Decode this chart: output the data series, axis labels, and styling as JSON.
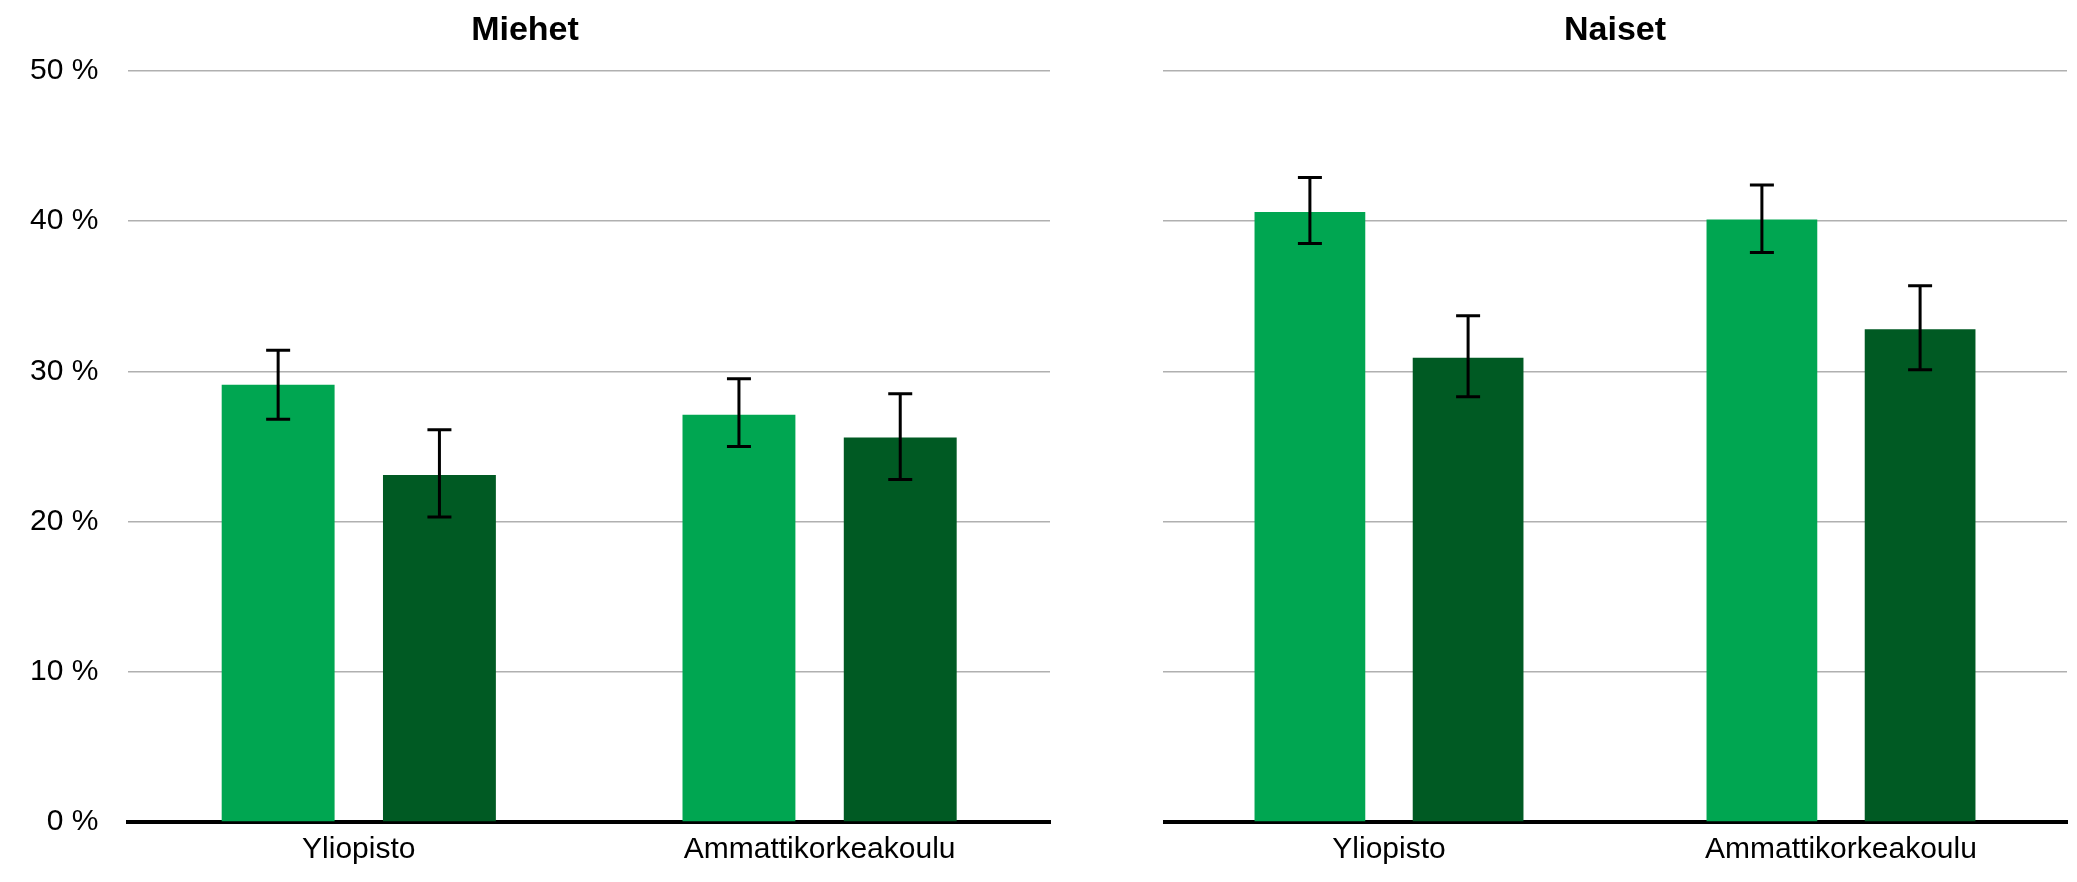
{
  "chart_data": [
    {
      "type": "bar",
      "title": "Miehet",
      "categories": [
        "Yliopisto",
        "Ammattikorkeakoulu"
      ],
      "series": [
        {
          "color": "#00a651",
          "values": [
            29.1,
            27.1
          ],
          "errors": [
            [
              26.8,
              31.4
            ],
            [
              25.0,
              29.5
            ]
          ]
        },
        {
          "color": "#005a23",
          "values": [
            23.1,
            25.6
          ],
          "errors": [
            [
              20.3,
              26.1
            ],
            [
              22.8,
              28.5
            ]
          ]
        }
      ],
      "ylim": [
        0,
        50
      ],
      "yticks": [
        {
          "value": 0,
          "label": "0 %"
        },
        {
          "value": 10,
          "label": "10 %"
        },
        {
          "value": 20,
          "label": "20 %"
        },
        {
          "value": 30,
          "label": "30 %"
        },
        {
          "value": 40,
          "label": "40 %"
        },
        {
          "value": 50,
          "label": "50 %"
        }
      ],
      "grid": "y"
    },
    {
      "type": "bar",
      "title": "Naiset",
      "categories": [
        "Yliopisto",
        "Ammattikorkeakoulu"
      ],
      "series": [
        {
          "color": "#00a651",
          "values": [
            40.6,
            40.1
          ],
          "errors": [
            [
              38.5,
              42.9
            ],
            [
              37.9,
              42.4
            ]
          ]
        },
        {
          "color": "#005a23",
          "values": [
            30.9,
            32.8
          ],
          "errors": [
            [
              28.3,
              33.7
            ],
            [
              30.1,
              35.7
            ]
          ]
        }
      ],
      "ylim": [
        0,
        50
      ],
      "yticks": [
        0,
        10,
        20,
        30,
        40,
        50
      ],
      "grid": "y",
      "tick_labels": "x"
    }
  ]
}
